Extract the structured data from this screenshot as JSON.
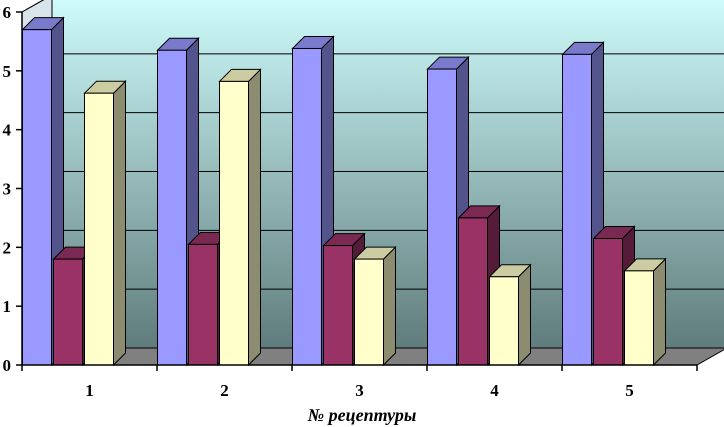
{
  "chart_data": {
    "type": "bar",
    "categories": [
      "1",
      "2",
      "3",
      "4",
      "5"
    ],
    "series": [
      {
        "values": [
          5.7,
          5.35,
          5.38,
          5.03,
          5.28
        ],
        "color": "#9999ff"
      },
      {
        "values": [
          1.8,
          2.05,
          2.03,
          2.5,
          2.15
        ],
        "color": "#993366"
      },
      {
        "values": [
          4.62,
          4.82,
          1.8,
          1.5,
          1.6
        ],
        "color": "#ffffcc"
      }
    ],
    "xlabel": "№ рецептуры",
    "ylabel": "",
    "ylim": [
      0,
      6
    ],
    "yticks": [
      "0",
      "1",
      "2",
      "3",
      "4",
      "5",
      "6"
    ],
    "grid": true,
    "style": "3d-bars",
    "background_gradient": [
      "#cffcfc",
      "#607c7c"
    ]
  }
}
